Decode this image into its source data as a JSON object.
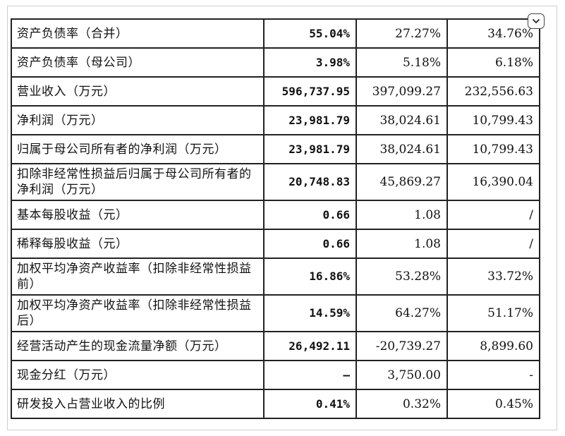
{
  "table": {
    "rows": [
      {
        "label": "资产负债率（合并）",
        "v1": "55.04%",
        "v2": "27.27%",
        "v3": "34.76%"
      },
      {
        "label": "资产负债率（母公司）",
        "v1": "3.98%",
        "v2": "5.18%",
        "v3": "6.18%"
      },
      {
        "label": "营业收入（万元）",
        "v1": "596,737.95",
        "v2": "397,099.27",
        "v3": "232,556.63"
      },
      {
        "label": "净利润（万元）",
        "v1": "23,981.79",
        "v2": "38,024.61",
        "v3": "10,799.43"
      },
      {
        "label": "归属于母公司所有者的净利润（万元）",
        "v1": "23,981.79",
        "v2": "38,024.61",
        "v3": "10,799.43"
      },
      {
        "label": "扣除非经常性损益后归属于母公司所有者的净利润（万元）",
        "v1": "20,748.83",
        "v2": "45,869.27",
        "v3": "16,390.04"
      },
      {
        "label": "基本每股收益（元）",
        "v1": "0.66",
        "v2": "1.08",
        "v3": "/"
      },
      {
        "label": "稀释每股收益（元）",
        "v1": "0.66",
        "v2": "1.08",
        "v3": "/"
      },
      {
        "label": "加权平均净资产收益率（扣除非经常性损益前）",
        "v1": "16.86%",
        "v2": "53.28%",
        "v3": "33.72%"
      },
      {
        "label": "加权平均净资产收益率（扣除非经常性损益后）",
        "v1": "14.59%",
        "v2": "64.27%",
        "v3": "51.17%"
      },
      {
        "label": "经营活动产生的现金流量净额（万元）",
        "v1": "26,492.11",
        "v2": "-20,739.27",
        "v3": "8,899.60"
      },
      {
        "label": "现金分红（万元）",
        "v1": "–",
        "v2": "3,750.00",
        "v3": "-"
      },
      {
        "label": "研发投入占营业收入的比例",
        "v1": "0.41%",
        "v2": "0.32%",
        "v3": "0.45%"
      }
    ]
  },
  "controls": {
    "collapse_icon": "chevron-down-icon"
  }
}
